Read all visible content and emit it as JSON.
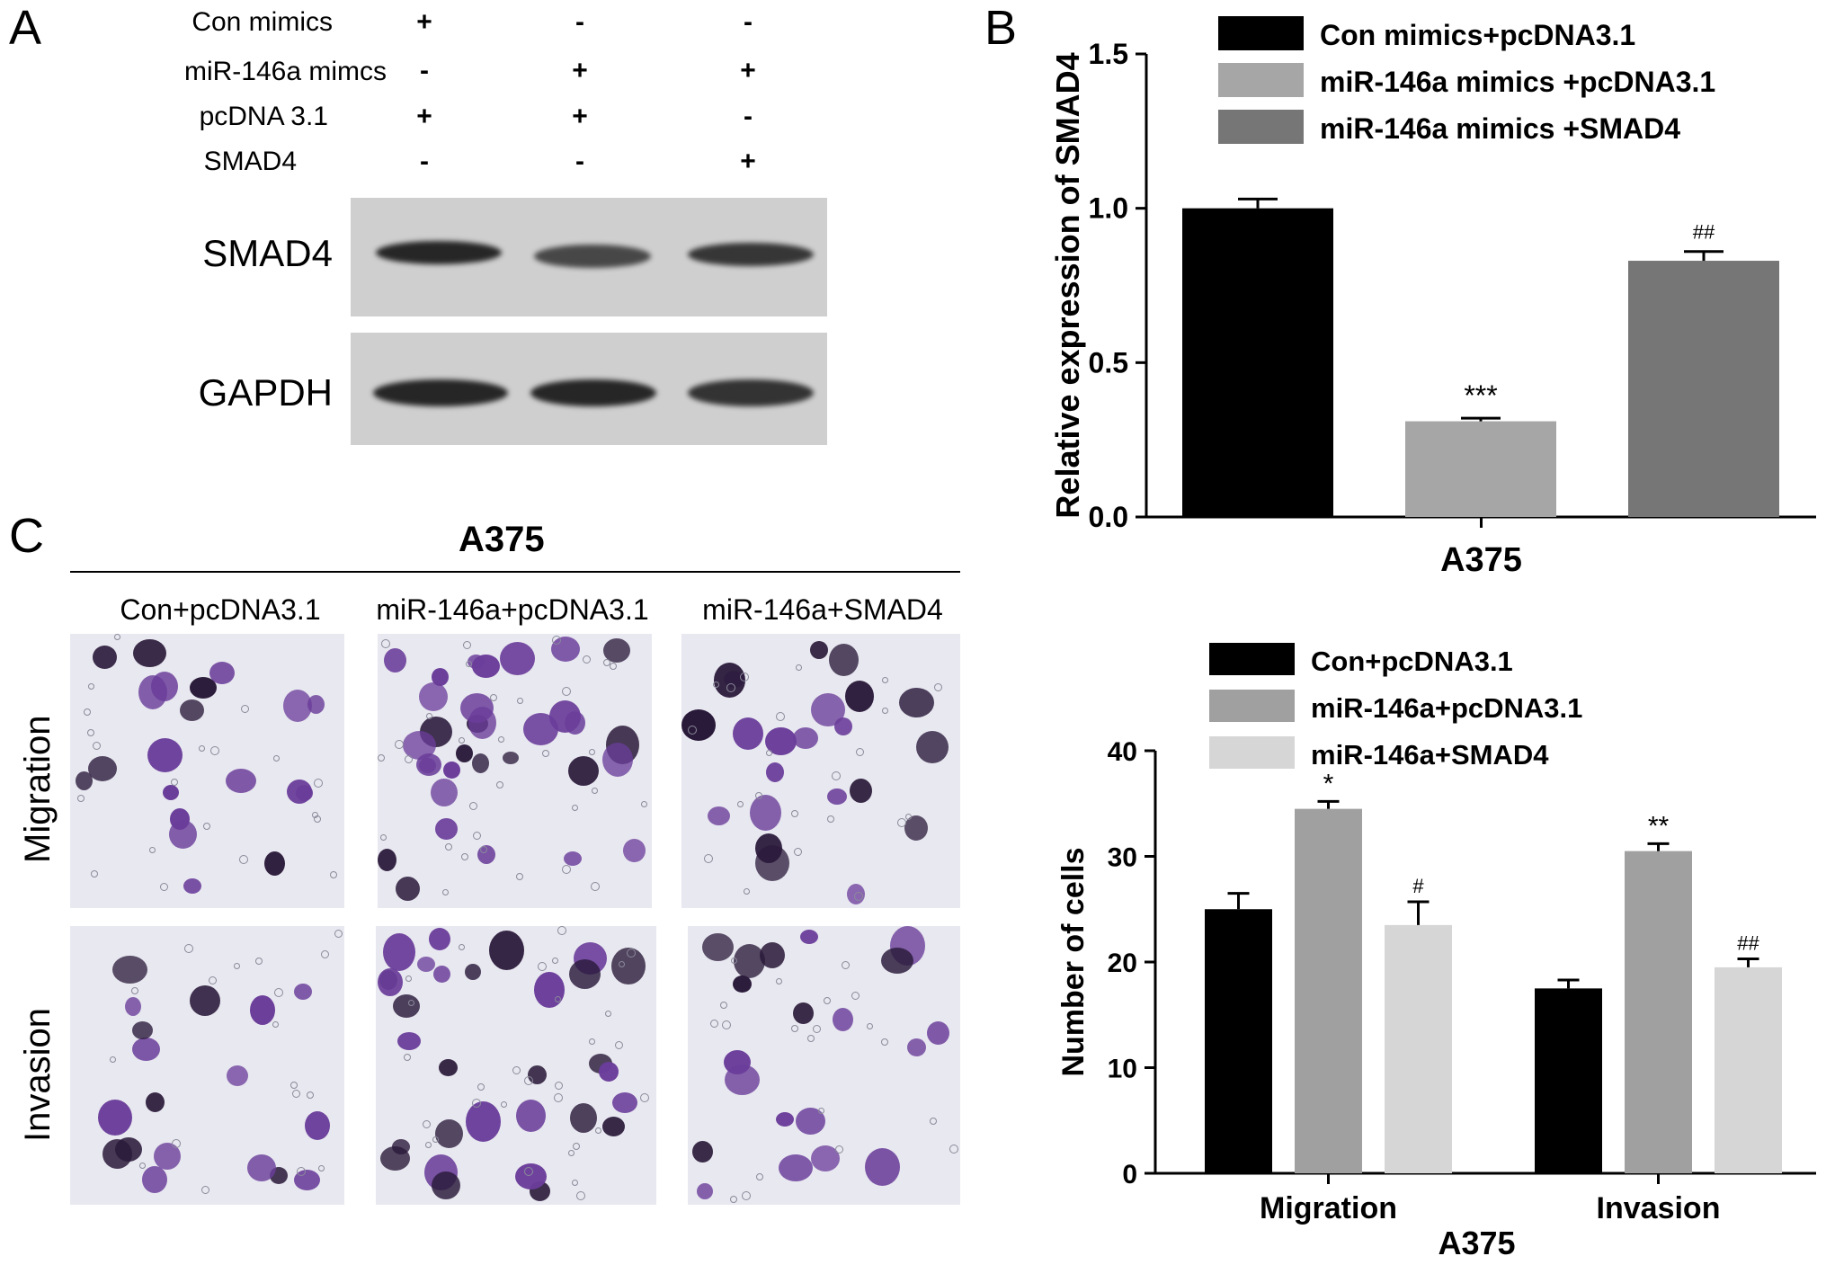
{
  "panels": {
    "a": "A",
    "b": "B",
    "c": "C"
  },
  "panel_a": {
    "conditions": [
      {
        "label": "Con mimics",
        "signs": [
          "+",
          "-",
          "-"
        ]
      },
      {
        "label": "miR-146a mimcs",
        "signs": [
          "-",
          "+",
          "+"
        ]
      },
      {
        "label": "pcDNA 3.1",
        "signs": [
          "+",
          "+",
          "-"
        ]
      },
      {
        "label": "SMAD4",
        "signs": [
          "-",
          "-",
          "+"
        ]
      }
    ],
    "blots": [
      {
        "label": "SMAD4",
        "intensity": [
          0.95,
          0.7,
          0.85
        ]
      },
      {
        "label": "GAPDH",
        "intensity": [
          1.0,
          1.0,
          0.95
        ]
      }
    ]
  },
  "panel_c": {
    "cell_line": "A375",
    "columns": [
      "Con+pcDNA3.1",
      "miR-146a+pcDNA3.1",
      "miR-146a+SMAD4"
    ],
    "rows": [
      "Migration",
      "Invasion"
    ]
  },
  "chart_data": [
    {
      "type": "bar",
      "ylabel": "Relative expression of SMAD4",
      "xlabel": "A375",
      "ylim": [
        0,
        1.5
      ],
      "yticks": [
        "0.0",
        "0.5",
        "1.0",
        "1.5"
      ],
      "legend_position": "top",
      "series": [
        {
          "name": "Con mimics+pcDNA3.1",
          "values": [
            1.0
          ],
          "error": [
            0.03
          ],
          "annotation": "",
          "color": "#000000"
        },
        {
          "name": "miR-146a mimics +pcDNA3.1",
          "values": [
            0.31
          ],
          "error": [
            0.01
          ],
          "annotation": "***",
          "color": "#a6a6a6"
        },
        {
          "name": "miR-146a mimics +SMAD4",
          "values": [
            0.83
          ],
          "error": [
            0.03
          ],
          "annotation": "##",
          "color": "#767676"
        }
      ]
    },
    {
      "type": "bar",
      "ylabel": "Number of cells",
      "xlabel": "A375",
      "categories": [
        "Migration",
        "Invasion"
      ],
      "ylim": [
        0,
        40
      ],
      "yticks": [
        "0",
        "10",
        "20",
        "30",
        "40"
      ],
      "legend_position": "top",
      "series": [
        {
          "name": "Con+pcDNA3.1",
          "values": [
            25,
            17.5
          ],
          "error": [
            1.5,
            0.8
          ],
          "annotations": [
            "",
            ""
          ],
          "color": "#000000"
        },
        {
          "name": "miR-146a+pcDNA3.1",
          "values": [
            34.5,
            30.5
          ],
          "error": [
            0.7,
            0.7
          ],
          "annotations": [
            "*",
            "**"
          ],
          "color": "#a0a0a0"
        },
        {
          "name": "miR-146a+SMAD4",
          "values": [
            23.5,
            19.5
          ],
          "error": [
            2.2,
            0.8
          ],
          "annotations": [
            "#",
            "##"
          ],
          "color": "#d6d6d6"
        }
      ]
    }
  ]
}
